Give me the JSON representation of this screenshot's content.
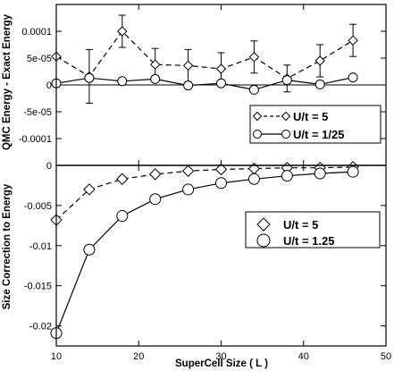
{
  "chart_data": [
    {
      "type": "line",
      "ylabel": "QMC Energy - Exact Energy",
      "xlim": [
        10,
        50
      ],
      "ylim": [
        -0.00015,
        0.00015
      ],
      "yticks": [
        {
          "value": 0.0001,
          "label": "0.0001"
        },
        {
          "value": 5e-05,
          "label": "5e-05"
        },
        {
          "value": 0,
          "label": "0"
        },
        {
          "value": -5e-05,
          "label": "-5e-05"
        },
        {
          "value": -0.0001,
          "label": "-0.0001"
        }
      ],
      "legend_position": "bottom-right",
      "series": [
        {
          "name": "U/t = 5",
          "marker": "diamond",
          "line_style": "dashed",
          "x": [
            10,
            14,
            18,
            22,
            26,
            30,
            34,
            38,
            42,
            46
          ],
          "y": [
            5.3e-05,
            1.6e-05,
            0.0001,
            3.8e-05,
            3.6e-05,
            3e-05,
            5.2e-05,
            1.2e-05,
            4.5e-05,
            8.3e-05
          ],
          "error": [
            0,
            5e-05,
            3e-05,
            3e-05,
            3e-05,
            3e-05,
            3e-05,
            2.5e-05,
            3e-05,
            3e-05
          ]
        },
        {
          "name": "U/t = 1/25",
          "marker": "circle",
          "line_style": "solid",
          "x": [
            10,
            14,
            18,
            22,
            26,
            30,
            34,
            38,
            42,
            46
          ],
          "y": [
            3e-06,
            1.3e-05,
            7e-06,
            1.1e-05,
            -1e-06,
            3e-06,
            -9e-06,
            9e-06,
            1e-06,
            1.4e-05
          ],
          "error": [
            0,
            6e-06,
            4e-06,
            5e-06,
            5e-06,
            5e-06,
            5e-06,
            5e-06,
            5e-06,
            5e-06
          ]
        }
      ]
    },
    {
      "type": "line",
      "xlabel": "SuperCell Size ( L )",
      "ylabel": "Size Correction to Energy",
      "xlim": [
        10,
        50
      ],
      "ylim": [
        -0.0225,
        0
      ],
      "xticks": [
        10,
        20,
        30,
        40,
        50
      ],
      "yticks": [
        {
          "value": 0,
          "label": "0"
        },
        {
          "value": -0.005,
          "label": "-0.005"
        },
        {
          "value": -0.01,
          "label": "-0.01"
        },
        {
          "value": -0.015,
          "label": "-0.015"
        },
        {
          "value": -0.02,
          "label": "-0.02"
        }
      ],
      "legend_position": "right",
      "series": [
        {
          "name": "U/t = 5",
          "marker": "diamond",
          "line_style": "dashed",
          "x": [
            10,
            14,
            18,
            22,
            26,
            30,
            34,
            38,
            42,
            46
          ],
          "y": [
            -0.0068,
            -0.003,
            -0.0017,
            -0.0011,
            -0.0007,
            -0.0005,
            -0.0004,
            -0.0003,
            -0.0003,
            -0.0002
          ]
        },
        {
          "name": "U/t = 1.25",
          "marker": "circle",
          "line_style": "solid",
          "x": [
            10,
            14,
            18,
            22,
            26,
            30,
            34,
            38,
            42,
            46
          ],
          "y": [
            -0.0209,
            -0.0105,
            -0.0063,
            -0.0042,
            -0.003,
            -0.0022,
            -0.0017,
            -0.0013,
            -0.001,
            -0.0008
          ]
        }
      ]
    }
  ]
}
